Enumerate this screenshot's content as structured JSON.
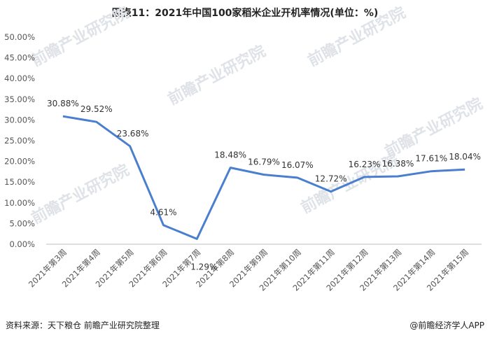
{
  "title": "图表11：2021年中国100家稻米企业开机率情况(单位：%)",
  "footer": {
    "source": "资料来源：天下粮仓 前瞻产业研究院整理",
    "brand": "@前瞻经济学人APP"
  },
  "watermark": "前瞻产业研究院",
  "colors": {
    "line": "#4a7fcf",
    "axis": "#bfbfbf",
    "text": "#333333"
  },
  "chart_data": {
    "type": "line",
    "title": "图表11：2021年中国100家稻米企业开机率情况(单位：%)",
    "categories": [
      "2021年第3周",
      "2021年第4周",
      "2021年第5周",
      "2021年第6周",
      "2021年第7周",
      "2021年第8周",
      "2021年第9周",
      "2021年第10周",
      "2021年第11周",
      "2021年第12周",
      "2021年第13周",
      "2021年第14周",
      "2021年第15周"
    ],
    "series": [
      {
        "values": [
          30.88,
          29.52,
          23.68,
          4.61,
          1.29,
          18.48,
          16.79,
          16.07,
          12.72,
          16.23,
          16.38,
          17.61,
          18.04
        ]
      }
    ],
    "data_labels": [
      "30.88%",
      "29.52%",
      "23.68%",
      "4.61%",
      "1.29%",
      "18.48%",
      "16.79%",
      "16.07%",
      "12.72%",
      "16.23%",
      "16.38%",
      "17.61%",
      "18.04%"
    ],
    "y_ticks": [
      "0.00%",
      "5.00%",
      "10.00%",
      "15.00%",
      "20.00%",
      "25.00%",
      "30.00%",
      "35.00%",
      "40.00%",
      "45.00%",
      "50.00%"
    ],
    "ylim": [
      0,
      50
    ],
    "grid": false,
    "legend": "none"
  }
}
